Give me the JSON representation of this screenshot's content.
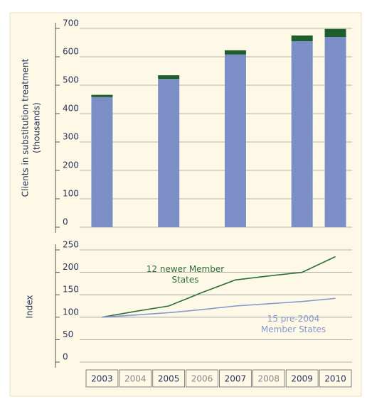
{
  "chart_data": [
    {
      "type": "bar",
      "stacked": true,
      "ylabel": [
        "Clients in substitution treatment",
        "(thousands)"
      ],
      "series": [
        {
          "color": "#7b8fc6",
          "values": [
            458,
            null,
            522,
            null,
            608,
            null,
            655,
            670
          ]
        },
        {
          "color": "#1e5e2c",
          "values": [
            8,
            null,
            13,
            null,
            15,
            null,
            20,
            28
          ]
        }
      ],
      "ylim": [
        0,
        700
      ],
      "yticks": [
        0,
        100,
        200,
        300,
        400,
        500,
        600,
        700
      ],
      "grid": true
    },
    {
      "type": "line",
      "ylabel": "Index",
      "categories": [
        "2003",
        "2004",
        "2005",
        "2006",
        "2007",
        "2008",
        "2009",
        "2010"
      ],
      "series": [
        {
          "name": "12 newer Member States",
          "color": "#2f6e3b",
          "values": [
            100,
            113,
            125,
            155,
            183,
            192,
            200,
            235
          ]
        },
        {
          "name": "15 pre-2004 Member States",
          "color": "#8797cf",
          "values": [
            100,
            105,
            110,
            117,
            125,
            130,
            135,
            142
          ]
        }
      ],
      "ylim": [
        0,
        250
      ],
      "yticks": [
        0,
        50,
        100,
        150,
        200,
        250
      ],
      "grid": true
    }
  ]
}
